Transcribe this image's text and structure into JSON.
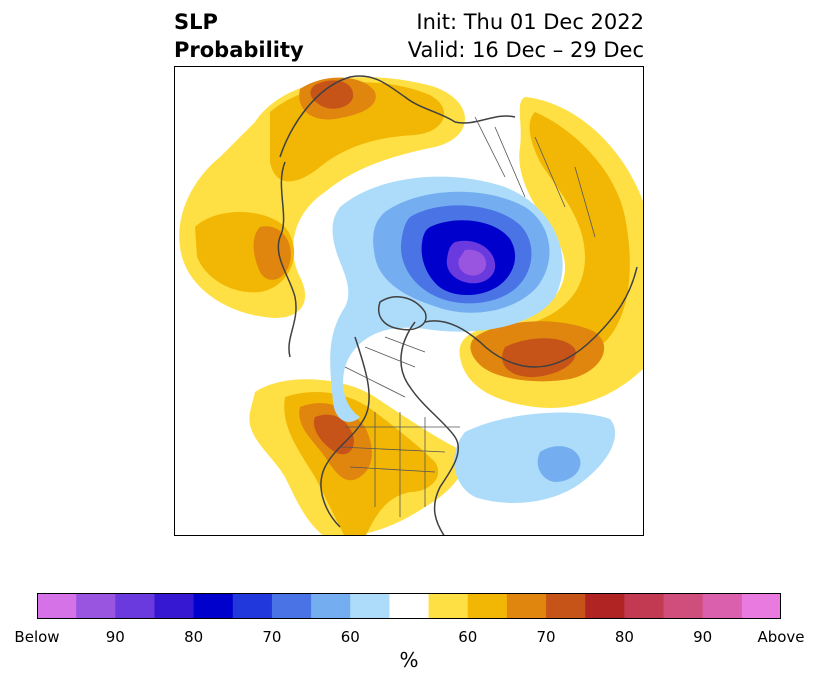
{
  "header": {
    "variable": "SLP",
    "field": "Probability",
    "init": "Init: Thu 01 Dec 2022",
    "valid": "Valid: 16 Dec – 29 Dec"
  },
  "colorbar": {
    "colors": [
      "#d572e8",
      "#9a55e0",
      "#6a3ade",
      "#3618d2",
      "#0000cc",
      "#2138dc",
      "#4a73e6",
      "#74aef0",
      "#acdcfa",
      "#ffffff",
      "#ffe044",
      "#f2b705",
      "#e0860e",
      "#c65418",
      "#b02424",
      "#c23a52",
      "#d04e7c",
      "#da60ae",
      "#e97ae0"
    ],
    "tick_labels": [
      "Below",
      "90",
      "80",
      "70",
      "60",
      "60",
      "70",
      "80",
      "90",
      "Above"
    ],
    "unit": "%"
  },
  "map": {
    "projection": "north-polar-stereographic",
    "legend_colors": {
      "below_60": "#acdcfa",
      "below_70": "#74aef0",
      "below_80": "#2138dc",
      "below_90": "#0000cc",
      "below_max": "#9a55e0",
      "above_60": "#ffe044",
      "above_70": "#f2b705",
      "above_80": "#e0860e",
      "above_max": "#c65418"
    },
    "coast_color": "#404040",
    "border_color": "#555555"
  }
}
